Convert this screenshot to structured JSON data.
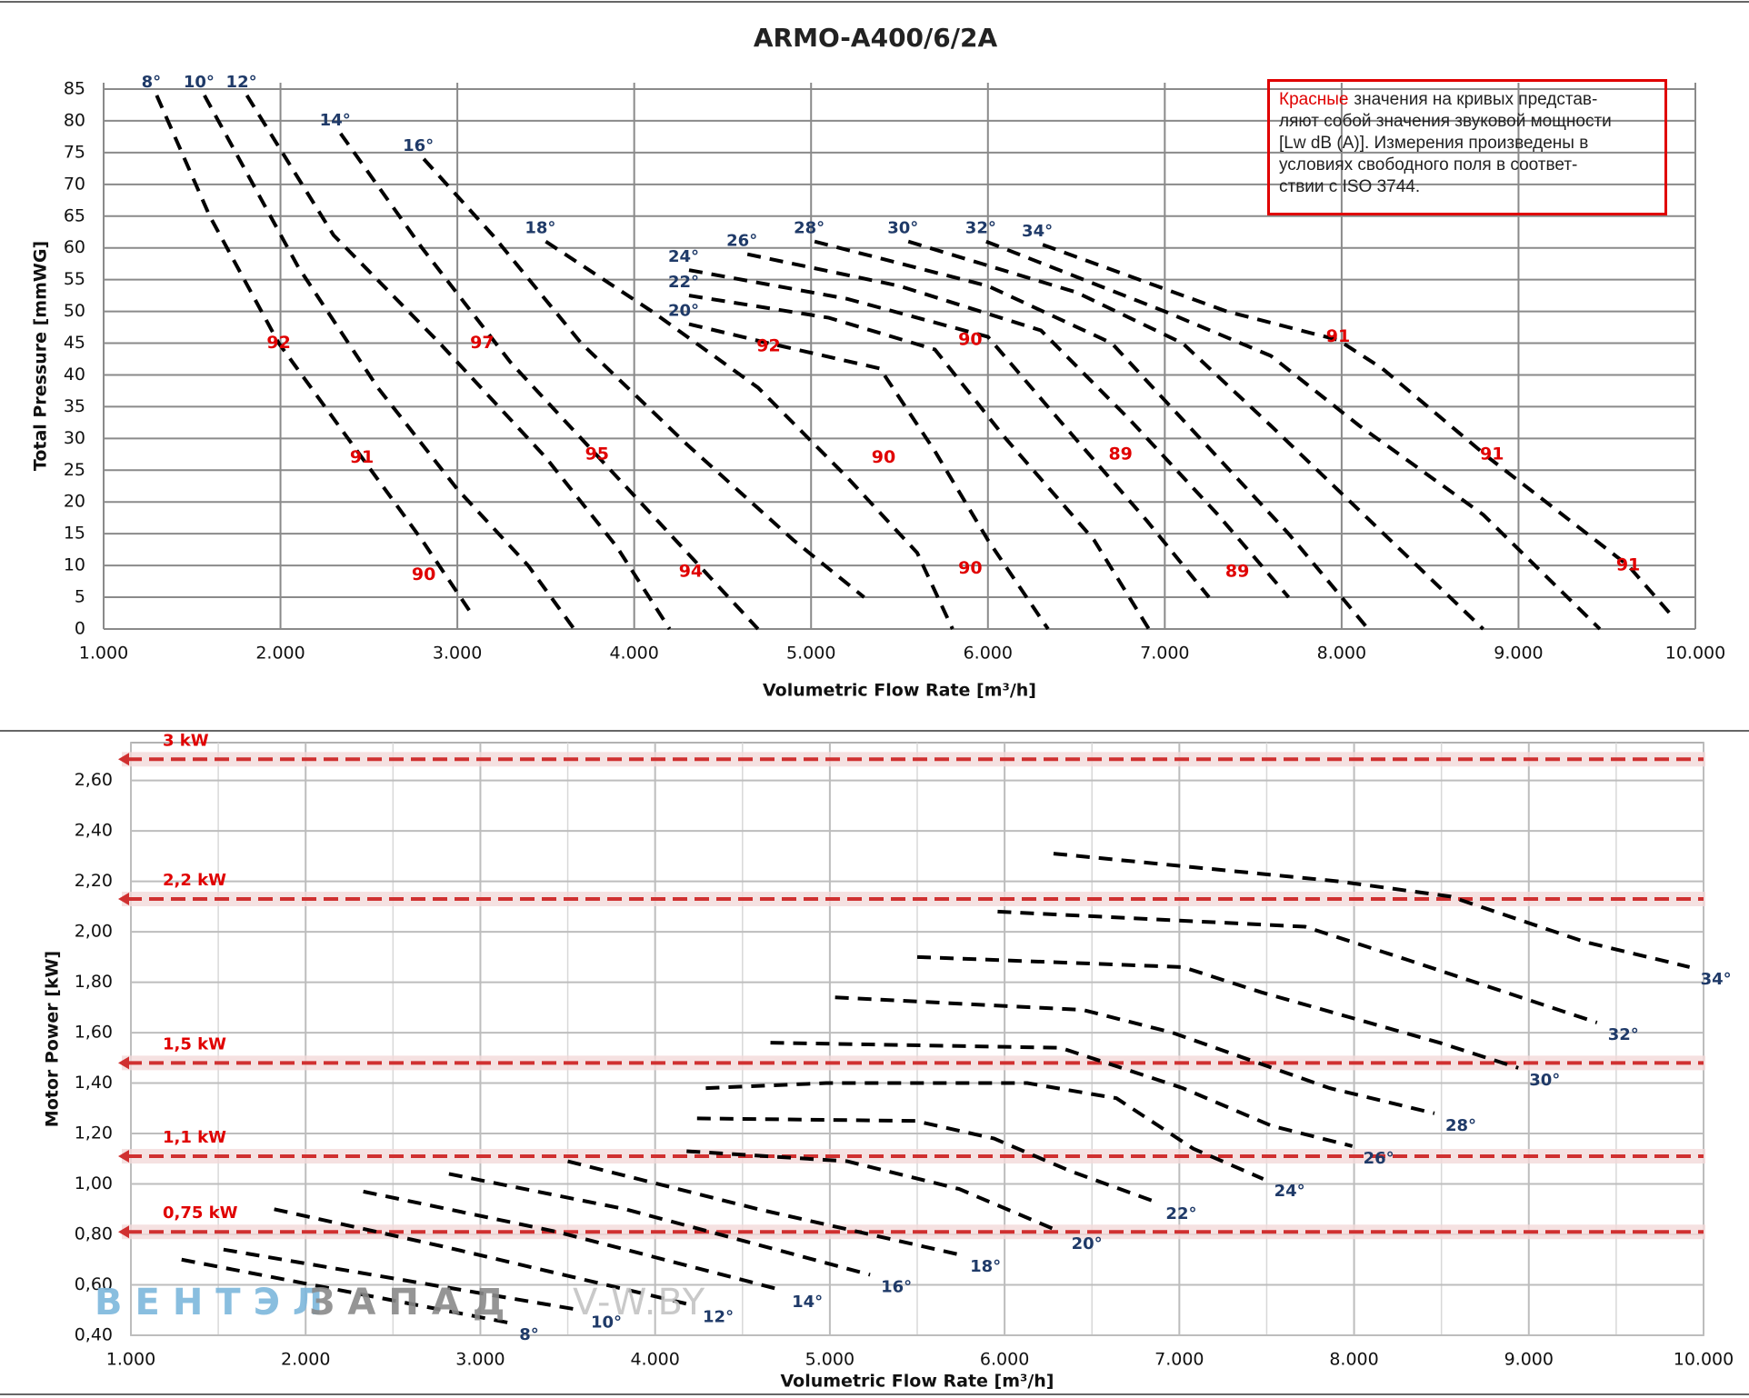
{
  "chart_data": [
    {
      "type": "line",
      "title": "ARMO-A400/6/2A",
      "xlabel": "Volumetric Flow Rate  [m³/h]",
      "ylabel": "Total Pressure [mmWG]",
      "xlim": [
        1000,
        10000
      ],
      "xticks": [
        {
          "value": 1000,
          "label": "1.000"
        },
        {
          "value": 2000,
          "label": "2.000"
        },
        {
          "value": 3000,
          "label": "3.000"
        },
        {
          "value": 4000,
          "label": "4.000"
        },
        {
          "value": 5000,
          "label": "5.000"
        },
        {
          "value": 6000,
          "label": "6.000"
        },
        {
          "value": 7000,
          "label": "7.000"
        },
        {
          "value": 8000,
          "label": "8.000"
        },
        {
          "value": 9000,
          "label": "9.000"
        },
        {
          "value": 10000,
          "label": "10.000"
        }
      ],
      "ylim": [
        0,
        86
      ],
      "yticks": [
        0,
        5,
        10,
        15,
        20,
        25,
        30,
        35,
        40,
        45,
        50,
        55,
        60,
        65,
        70,
        75,
        80,
        85
      ],
      "grid": true,
      "color": "#000000",
      "label_color": "#1f3a68",
      "series_label_position": "start",
      "series": [
        {
          "name": "8°",
          "x": [
            1300,
            1600,
            1990,
            2460,
            2800,
            3090
          ],
          "values": [
            84,
            65,
            45,
            27,
            14,
            2
          ]
        },
        {
          "name": "10°",
          "x": [
            1570,
            2100,
            2550,
            3000,
            3400,
            3660
          ],
          "values": [
            84,
            57,
            38,
            22,
            10,
            0
          ]
        },
        {
          "name": "12°",
          "x": [
            1810,
            2300,
            2900,
            3500,
            3900,
            4200
          ],
          "values": [
            84,
            62,
            45,
            27,
            13,
            0
          ]
        },
        {
          "name": "14°",
          "x": [
            2340,
            2800,
            3300,
            3800,
            4300,
            4700
          ],
          "values": [
            78,
            60,
            42,
            27,
            12,
            0
          ]
        },
        {
          "name": "16°",
          "x": [
            2810,
            3200,
            3700,
            4300,
            4900,
            5300
          ],
          "values": [
            74,
            62,
            45,
            29,
            14,
            5
          ]
        },
        {
          "name": "18°",
          "x": [
            3500,
            4100,
            4700,
            5200,
            5600,
            5800
          ],
          "values": [
            61,
            50,
            38,
            24,
            12,
            0
          ]
        },
        {
          "name": "20°",
          "x": [
            4310,
            4760,
            5390,
            5700,
            6000,
            6340
          ],
          "values": [
            48,
            45,
            41,
            28,
            14,
            0
          ]
        },
        {
          "name": "22°",
          "x": [
            4310,
            5100,
            5700,
            6100,
            6600,
            6910
          ],
          "values": [
            52.5,
            49,
            44,
            30,
            14,
            0
          ]
        },
        {
          "name": "24°",
          "x": [
            4310,
            5200,
            6000,
            6400,
            6900,
            7250
          ],
          "values": [
            56.5,
            52,
            46,
            33,
            17,
            5
          ]
        },
        {
          "name": "26°",
          "x": [
            4640,
            5500,
            6300,
            6800,
            7300,
            7700
          ],
          "values": [
            59,
            54,
            47,
            33,
            18,
            5
          ]
        },
        {
          "name": "28°",
          "x": [
            5020,
            6000,
            6700,
            7200,
            7700,
            8150
          ],
          "values": [
            61,
            54,
            45,
            30,
            15,
            0
          ]
        },
        {
          "name": "30°",
          "x": [
            5550,
            6500,
            7100,
            7600,
            8200,
            8800
          ],
          "values": [
            61,
            53,
            45,
            32,
            16,
            0
          ]
        },
        {
          "name": "32°",
          "x": [
            5990,
            7000,
            7600,
            8100,
            8800,
            9460
          ],
          "values": [
            61,
            50,
            43,
            32,
            18,
            0
          ]
        },
        {
          "name": "34°",
          "x": [
            6310,
            7350,
            7980,
            8230,
            8830,
            9620,
            9870
          ],
          "values": [
            60.5,
            50,
            45.5,
            41,
            27,
            10,
            2
          ]
        }
      ],
      "annotation_color": "#e00000",
      "annotations": [
        {
          "value": 92,
          "x": 1990,
          "y": 45
        },
        {
          "value": 97,
          "x": 3140,
          "y": 45
        },
        {
          "value": 92,
          "x": 4760,
          "y": 44.5
        },
        {
          "value": 90,
          "x": 5900,
          "y": 45.5
        },
        {
          "value": 91,
          "x": 7980,
          "y": 46
        },
        {
          "value": 91,
          "x": 2460,
          "y": 27
        },
        {
          "value": 95,
          "x": 3790,
          "y": 27.5
        },
        {
          "value": 90,
          "x": 5410,
          "y": 27
        },
        {
          "value": 89,
          "x": 6750,
          "y": 27.5
        },
        {
          "value": 91,
          "x": 8850,
          "y": 27.5
        },
        {
          "value": 90,
          "x": 2810,
          "y": 8.5
        },
        {
          "value": 94,
          "x": 4320,
          "y": 9
        },
        {
          "value": 90,
          "x": 5900,
          "y": 9.5
        },
        {
          "value": 89,
          "x": 7410,
          "y": 9
        },
        {
          "value": 91,
          "x": 9620,
          "y": 10
        }
      ],
      "note": {
        "highlight": "Красные",
        "lines": [
          "значения на кривых представ-",
          "ляют собой значения звуковой мощности",
          "[Lw dB (A)]. Измерения произведены в",
          "условиях свободного поля в соответ-",
          "ствии с ISO 3744."
        ]
      }
    },
    {
      "type": "line",
      "xlabel": "Volumetric Flow Rate [m³/h]",
      "ylabel": "Motor Power [kW]",
      "xlim": [
        1000,
        10000
      ],
      "xticks": [
        {
          "value": 1000,
          "label": "1.000"
        },
        {
          "value": 2000,
          "label": "2.000"
        },
        {
          "value": 3000,
          "label": "3.000"
        },
        {
          "value": 4000,
          "label": "4.000"
        },
        {
          "value": 5000,
          "label": "5.000"
        },
        {
          "value": 6000,
          "label": "6.000"
        },
        {
          "value": 7000,
          "label": "7.000"
        },
        {
          "value": 8000,
          "label": "8.000"
        },
        {
          "value": 9000,
          "label": "9.000"
        },
        {
          "value": 10000,
          "label": "10.000"
        }
      ],
      "ylim": [
        0.4,
        2.75
      ],
      "yticks": [
        {
          "value": 0.4,
          "label": "0,40"
        },
        {
          "value": 0.6,
          "label": "0,60"
        },
        {
          "value": 0.8,
          "label": "0,80"
        },
        {
          "value": 1.0,
          "label": "1,00"
        },
        {
          "value": 1.2,
          "label": "1,20"
        },
        {
          "value": 1.4,
          "label": "1,40"
        },
        {
          "value": 1.6,
          "label": "1,60"
        },
        {
          "value": 1.8,
          "label": "1,80"
        },
        {
          "value": 2.0,
          "label": "2,00"
        },
        {
          "value": 2.2,
          "label": "2,20"
        },
        {
          "value": 2.4,
          "label": "2,40"
        },
        {
          "value": 2.6,
          "label": "2,60"
        }
      ],
      "grid": true,
      "color": "#000000",
      "label_color": "#1f3a68",
      "series_label_position": "end",
      "series": [
        {
          "name": "8°",
          "x": [
            1290,
            3160
          ],
          "values": [
            0.7,
            0.45
          ]
        },
        {
          "name": "10°",
          "x": [
            1530,
            3570
          ],
          "values": [
            0.74,
            0.5
          ]
        },
        {
          "name": "12°",
          "x": [
            1820,
            2800,
            4210
          ],
          "values": [
            0.9,
            0.75,
            0.52
          ]
        },
        {
          "name": "14°",
          "x": [
            2330,
            3440,
            4720
          ],
          "values": [
            0.97,
            0.81,
            0.58
          ]
        },
        {
          "name": "16°",
          "x": [
            2820,
            3830,
            5230
          ],
          "values": [
            1.04,
            0.9,
            0.64
          ]
        },
        {
          "name": "18°",
          "x": [
            3500,
            4590,
            5740
          ],
          "values": [
            1.09,
            0.9,
            0.72
          ]
        },
        {
          "name": "20°",
          "x": [
            4180,
            5100,
            5740,
            6320
          ],
          "values": [
            1.13,
            1.09,
            0.98,
            0.81
          ]
        },
        {
          "name": "22°",
          "x": [
            4240,
            5490,
            5940,
            6380,
            6860
          ],
          "values": [
            1.26,
            1.25,
            1.18,
            1.05,
            0.93
          ]
        },
        {
          "name": "24°",
          "x": [
            4290,
            4980,
            6130,
            6640,
            7080,
            7480
          ],
          "values": [
            1.38,
            1.4,
            1.4,
            1.34,
            1.14,
            1.02
          ]
        },
        {
          "name": "26°",
          "x": [
            4660,
            6320,
            7020,
            7530,
            7990
          ],
          "values": [
            1.56,
            1.54,
            1.38,
            1.23,
            1.15
          ]
        },
        {
          "name": "28°",
          "x": [
            5030,
            6450,
            6960,
            7860,
            8460
          ],
          "values": [
            1.74,
            1.69,
            1.6,
            1.38,
            1.28
          ]
        },
        {
          "name": "30°",
          "x": [
            5500,
            7020,
            7470,
            8490,
            8940
          ],
          "values": [
            1.9,
            1.86,
            1.76,
            1.56,
            1.46
          ]
        },
        {
          "name": "32°",
          "x": [
            5960,
            7720,
            8300,
            9390
          ],
          "values": [
            2.08,
            2.02,
            1.89,
            1.64
          ]
        },
        {
          "name": "34°",
          "x": [
            6280,
            7910,
            8550,
            9320,
            9920
          ],
          "values": [
            2.31,
            2.2,
            2.14,
            1.96,
            1.86
          ]
        }
      ],
      "reference_color": "#d03030",
      "reference_lines": [
        {
          "label": "3 kW",
          "value": 2.684
        },
        {
          "label": "2,2 kW",
          "value": 2.13
        },
        {
          "label": "1,5 kW",
          "value": 1.48
        },
        {
          "label": "1,1 kW",
          "value": 1.11
        },
        {
          "label": "0,75 kW",
          "value": 0.81
        }
      ],
      "watermark": [
        "ВЕНТЭЛ",
        "ЗАПАД",
        "V-W.BY"
      ]
    }
  ]
}
